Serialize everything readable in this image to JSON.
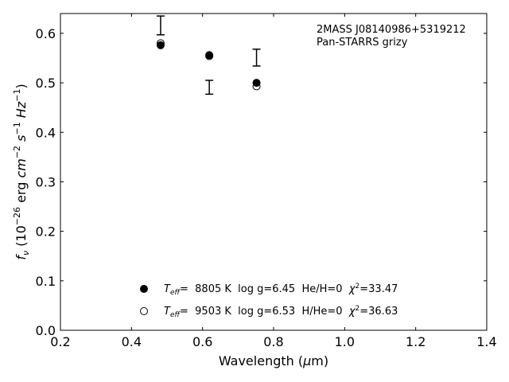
{
  "chart_data": {
    "type": "scatter",
    "title": "",
    "xlabel": "Wavelength (μm)",
    "ylabel": "f_ν (10^-26 erg cm^-2 s^-1 Hz^-1)",
    "xlim": [
      0.2,
      1.4
    ],
    "ylim": [
      0.0,
      0.64
    ],
    "xticks": [
      0.2,
      0.4,
      0.6,
      0.8,
      1.0,
      1.2,
      1.4
    ],
    "yticks": [
      0.0,
      0.1,
      0.2,
      0.3,
      0.4,
      0.5,
      0.6
    ],
    "xtick_labels": [
      "0.2",
      "0.4",
      "0.6",
      "0.8",
      "1.0",
      "1.2",
      "1.4"
    ],
    "ytick_labels": [
      "0.0",
      "0.1",
      "0.2",
      "0.3",
      "0.4",
      "0.5",
      "0.6"
    ],
    "grid": false,
    "annotation": [
      "2MASS J08140986+5319212",
      "Pan-STARRS grizy"
    ],
    "observed": {
      "x": [
        0.482,
        0.619,
        0.752
      ],
      "y": [
        0.616,
        0.491,
        0.551
      ],
      "yerr": [
        0.019,
        0.014,
        0.017
      ]
    },
    "series": [
      {
        "marker": "filled",
        "x": [
          0.482,
          0.619,
          0.752
        ],
        "y": [
          0.576,
          0.556,
          0.5
        ],
        "legend": {
          "teff_label": "T",
          "teff_sub": "eff",
          "teff_value": "=  8805 K  log g=6.45  He/H=0  ",
          "chi_label": "χ",
          "chi_sup": "2",
          "chi_value": "=33.47"
        }
      },
      {
        "marker": "open",
        "x": [
          0.482,
          0.619,
          0.752
        ],
        "y": [
          0.58,
          0.554,
          0.493
        ],
        "legend": {
          "teff_label": "T",
          "teff_sub": "eff",
          "teff_value": "=  9503 K  log g=6.53  H/He=0  ",
          "chi_label": "χ",
          "chi_sup": "2",
          "chi_value": "=36.63"
        }
      }
    ],
    "legend_position": "bottom-center"
  }
}
